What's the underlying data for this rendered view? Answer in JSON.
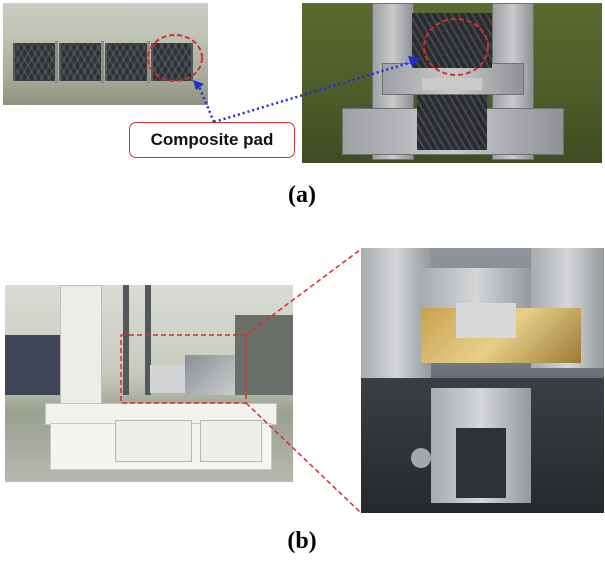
{
  "callout": {
    "label": "Composite pad"
  },
  "captions": {
    "a": "(a)",
    "b": "(b)"
  },
  "colors": {
    "circle_highlight": "#d0302f",
    "arrow": "#1f2ad8",
    "zoom_box": "#d0302f"
  }
}
